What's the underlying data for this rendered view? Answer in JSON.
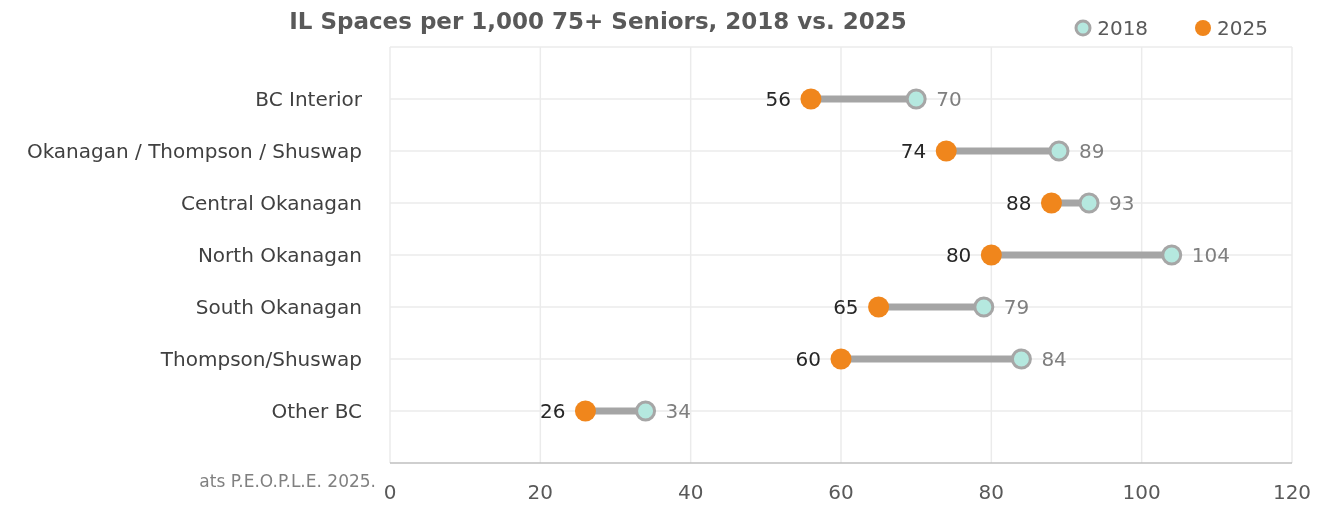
{
  "chart_data": {
    "type": "scatter",
    "orientation": "horizontal",
    "title": "IL Spaces per 1,000 75+ Seniors, 2018 vs. 2025",
    "categories": [
      "BC Interior",
      "Okanagan / Thompson / Shuswap",
      "Central Okanagan",
      "North Okanagan",
      "South Okanagan",
      "Thompson/Shuswap",
      "Other BC"
    ],
    "series": [
      {
        "name": "2018",
        "color": "#b5e8df",
        "values": [
          70,
          89,
          93,
          104,
          79,
          84,
          34
        ],
        "value_labels": [
          "70",
          "89",
          "93",
          "104",
          "79",
          "84",
          "34"
        ]
      },
      {
        "name": "2025",
        "color": "#f0861c",
        "values": [
          56,
          74,
          88,
          80,
          65,
          60,
          26
        ],
        "value_labels": [
          "56",
          "74",
          "88",
          "80",
          "65",
          "60",
          "26"
        ]
      }
    ],
    "xlim": [
      0,
      120
    ],
    "xticks": [
      0,
      20,
      40,
      60,
      80,
      100,
      120
    ],
    "grid": true,
    "legend": "top right",
    "marker": "circle",
    "annotations": [
      "ats P.E.O.P.L.E. 2025."
    ]
  }
}
